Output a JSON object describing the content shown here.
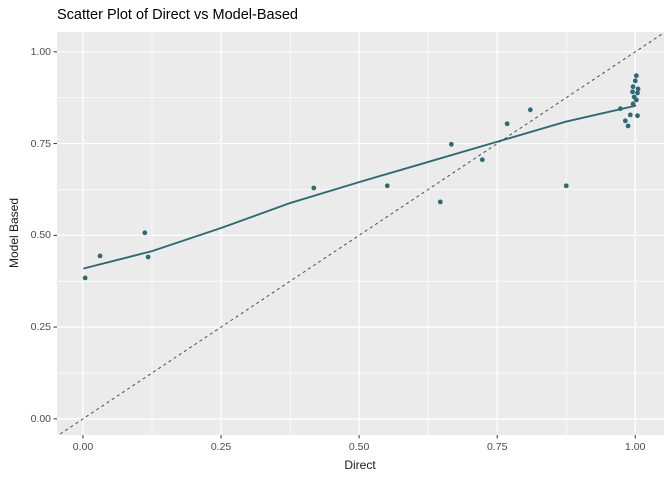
{
  "chart_data": {
    "type": "scatter",
    "title": "Scatter Plot of Direct vs Model-Based",
    "xlabel": "Direct",
    "ylabel": "Model Based",
    "xlim": [
      -0.047,
      1.052
    ],
    "ylim": [
      -0.044,
      1.054
    ],
    "x_ticks": {
      "values": [
        0,
        0.25,
        0.5,
        0.75,
        1.0
      ],
      "labels": [
        "0.00",
        "0.25",
        "0.50",
        "0.75",
        "1.00"
      ]
    },
    "y_ticks": {
      "values": [
        0,
        0.25,
        0.5,
        0.75,
        1.0
      ],
      "labels": [
        "0.00",
        "0.25",
        "0.50",
        "0.75",
        "1.00"
      ]
    },
    "grid": "major and minor gridlines on, white on grey panel",
    "legend": "none",
    "colors": {
      "panel_background": "#ebebeb",
      "gridline": "#ffffff",
      "point": "#2d6b74",
      "smooth_line": "#2d6b74",
      "identity_line": "#4d4d4d",
      "tick_text": "#4d4d4d",
      "axis_title_text": "#1a1a1a",
      "title_text": "#000000"
    },
    "points": [
      [
        0.004,
        0.384
      ],
      [
        0.031,
        0.444
      ],
      [
        0.112,
        0.507
      ],
      [
        0.118,
        0.441
      ],
      [
        0.418,
        0.629
      ],
      [
        0.551,
        0.635
      ],
      [
        0.647,
        0.591
      ],
      [
        0.667,
        0.748
      ],
      [
        0.723,
        0.706
      ],
      [
        0.768,
        0.804
      ],
      [
        0.81,
        0.842
      ],
      [
        0.875,
        0.635
      ],
      [
        0.973,
        0.845
      ],
      [
        0.982,
        0.812
      ],
      [
        0.987,
        0.798
      ],
      [
        0.991,
        0.828
      ],
      [
        0.995,
        0.891
      ],
      [
        0.996,
        0.905
      ],
      [
        0.996,
        0.858
      ],
      [
        0.998,
        0.877
      ],
      [
        1.0,
        0.921
      ],
      [
        1.002,
        0.935
      ],
      [
        1.002,
        0.869
      ],
      [
        1.004,
        0.888
      ],
      [
        1.004,
        0.826
      ],
      [
        1.005,
        0.899
      ]
    ],
    "smooth_line": [
      [
        0.002,
        0.41
      ],
      [
        0.125,
        0.457
      ],
      [
        0.25,
        0.52
      ],
      [
        0.375,
        0.588
      ],
      [
        0.5,
        0.645
      ],
      [
        0.625,
        0.7
      ],
      [
        0.75,
        0.755
      ],
      [
        0.875,
        0.81
      ],
      [
        1.0,
        0.853
      ]
    ],
    "identity_line": {
      "style": "dashed",
      "from": [
        -0.06,
        -0.06
      ],
      "to": [
        1.07,
        1.07
      ],
      "meaning": "y = x reference line"
    }
  }
}
